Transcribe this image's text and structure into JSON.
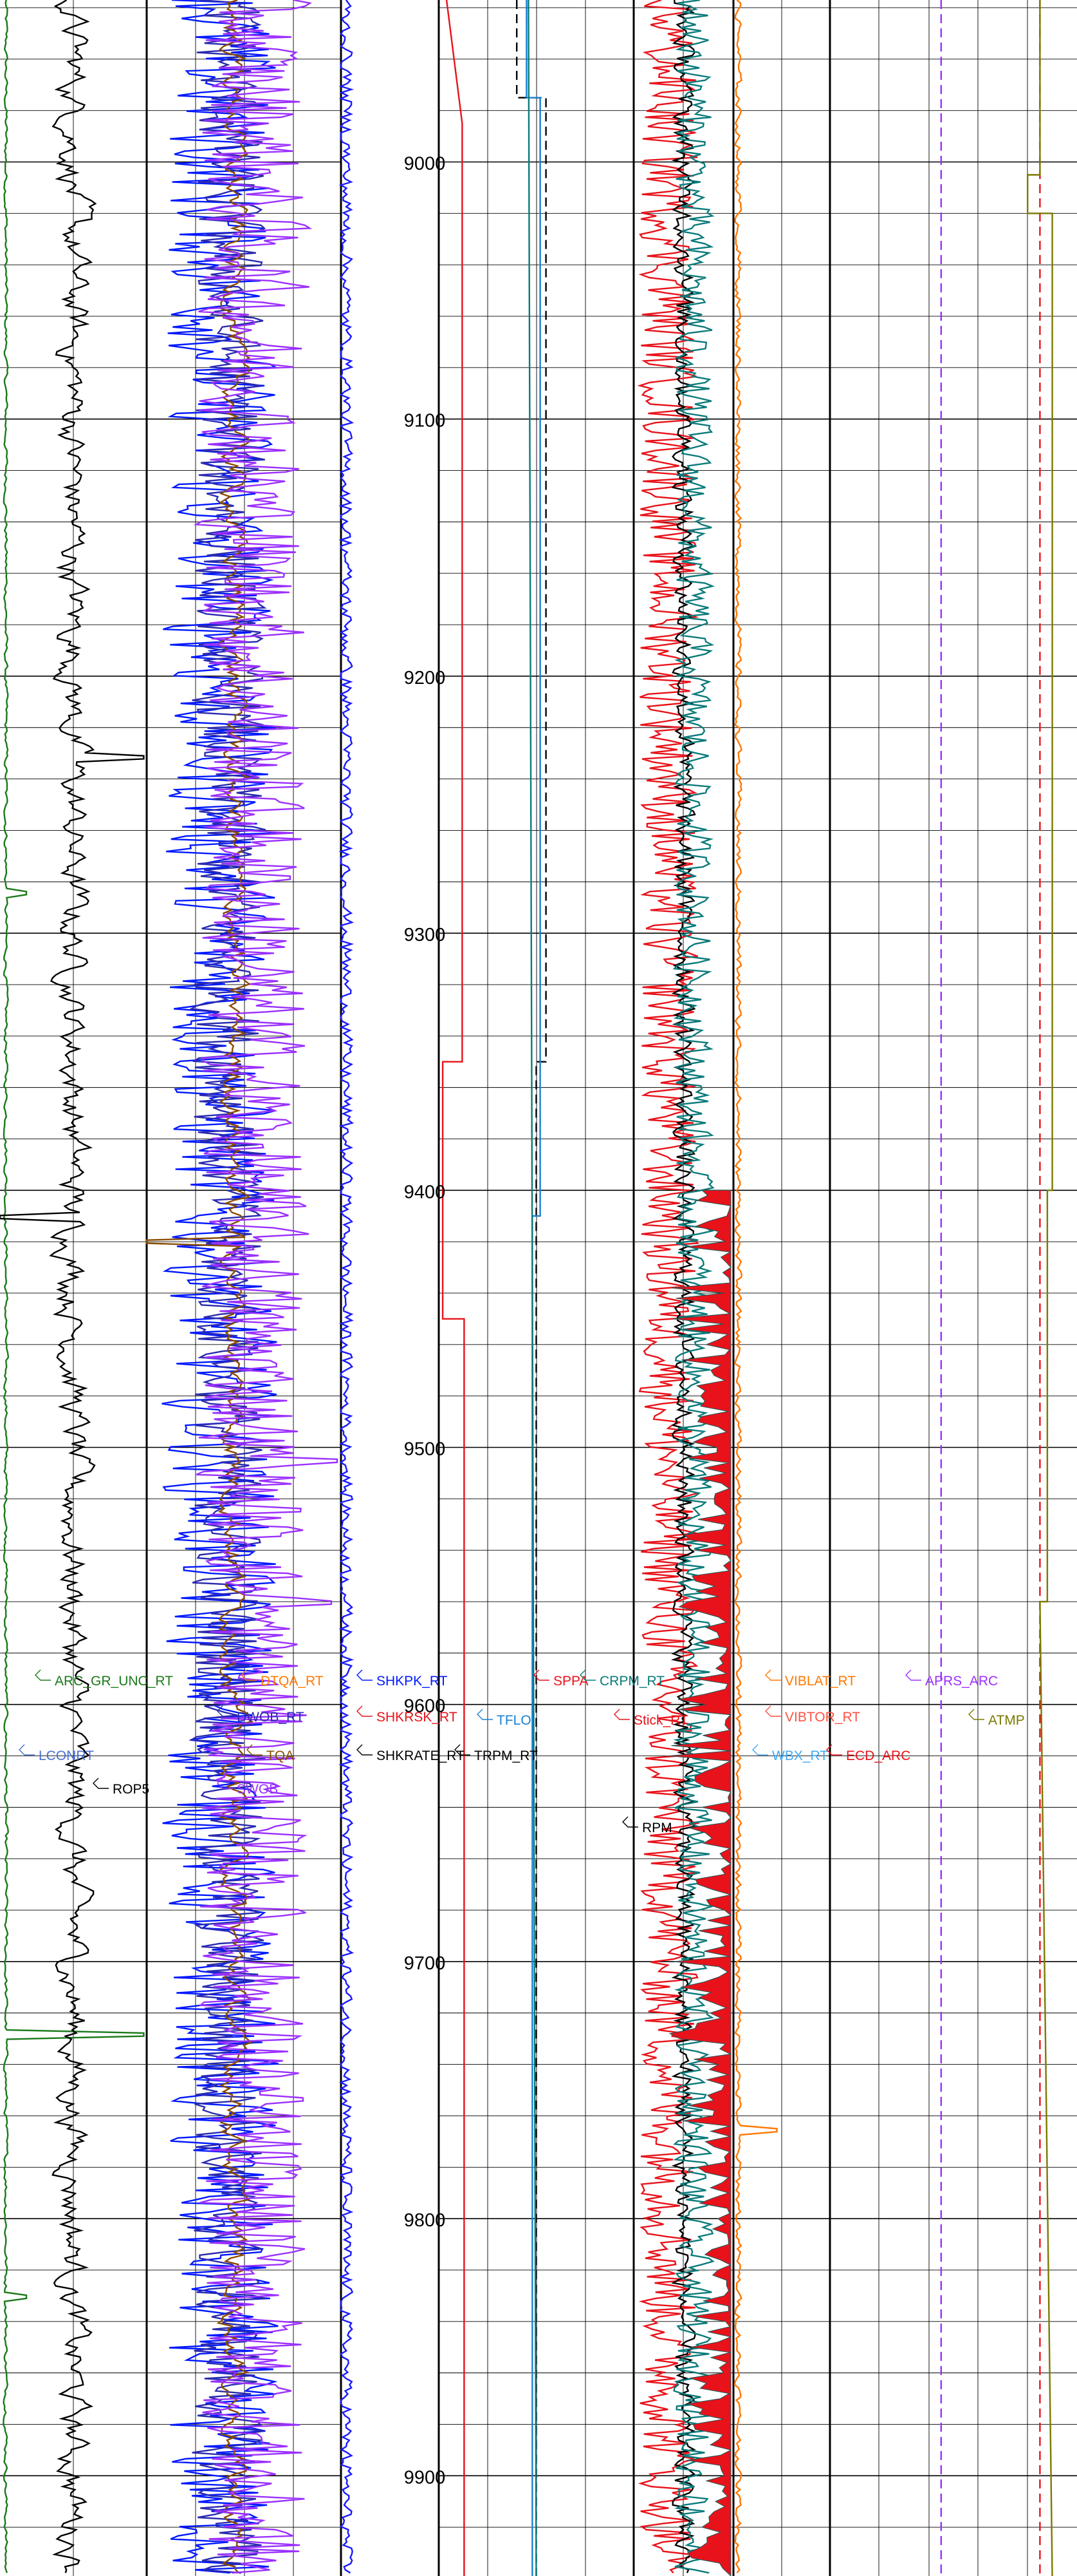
{
  "chart_data": {
    "type": "line",
    "title": "",
    "depth_axis": {
      "range": [
        8937,
        9939
      ],
      "labeled_ticks": [
        9000,
        9100,
        9200,
        9300,
        9400,
        9500,
        9600,
        9700,
        9800,
        9900
      ],
      "minor_step": 20,
      "grid": true
    },
    "tracks": [
      {
        "id": "track1",
        "curves": [
          {
            "name": "ARC_GR_UNC_RT",
            "color": "#1a7a1a",
            "base": 0.04,
            "amp": 0.02,
            "rough": 0.5,
            "spikes": [
              {
                "depth": 9285,
                "to": 0.18
              },
              {
                "depth": 9728,
                "to": 0.98
              },
              {
                "depth": 9831,
                "to": 0.18
              }
            ]
          },
          {
            "name": "LCONRT",
            "color": "#4a6fd4",
            "base": 0.0,
            "amp": 0.0,
            "rough": 0.0,
            "spikes": []
          },
          {
            "name": "ROP5",
            "color": "#000000",
            "base": 0.5,
            "amp": 0.22,
            "rough": 0.35,
            "spikes": [
              {
                "depth": 9232,
                "to": 0.98
              },
              {
                "depth": 9410,
                "to": 0.0
              }
            ]
          }
        ]
      },
      {
        "id": "track2",
        "curves": [
          {
            "name": "SHKPK_RT",
            "color": "#0018ff",
            "base": 0.38,
            "amp": 0.32,
            "rough": 0.85,
            "spikes": []
          },
          {
            "name": "DWOB_RT",
            "color": "#2a2ab0",
            "base": 0.42,
            "amp": 0.2,
            "rough": 0.9,
            "spikes": []
          },
          {
            "name": "TQA",
            "color": "#8b4a00",
            "base": 0.45,
            "amp": 0.12,
            "rough": 0.4,
            "spikes": [
              {
                "depth": 9420,
                "to": 0.0
              }
            ]
          },
          {
            "name": "SWOB",
            "color": "#9b30ff",
            "base": 0.55,
            "amp": 0.3,
            "rough": 0.9,
            "spikes": [
              {
                "depth": 9505,
                "to": 0.98
              },
              {
                "depth": 9560,
                "to": 0.95
              }
            ]
          }
        ]
      },
      {
        "id": "track3",
        "curves": [
          {
            "name": "SHKRSK_RT",
            "color": "#e8121a",
            "base": 0.02,
            "amp": 0.0,
            "rough": 0.0,
            "spikes": []
          },
          {
            "name": "SHKRATE_RT",
            "color": "#1a1aff",
            "base": 0.05,
            "amp": 0.07,
            "rough": 0.9,
            "spikes": []
          }
        ]
      },
      {
        "id": "track5",
        "curves": [
          {
            "name": "SPPA",
            "color": "#e8121a",
            "steps": [
              [
                8937,
                0.04
              ],
              [
                8985,
                0.12
              ],
              [
                9350,
                0.12
              ],
              [
                9350,
                0.02
              ],
              [
                9450,
                0.02
              ],
              [
                9450,
                0.13
              ],
              [
                9940,
                0.13
              ]
            ]
          },
          {
            "name": "TRPM_RT",
            "color": "#000000",
            "dashed": true,
            "steps": [
              [
                8937,
                0.4
              ],
              [
                8975,
                0.4
              ],
              [
                8975,
                0.55
              ],
              [
                9350,
                0.55
              ],
              [
                9350,
                0.5
              ],
              [
                9940,
                0.5
              ]
            ]
          },
          {
            "name": "TFLO",
            "color": "#1780d0",
            "steps": [
              [
                8937,
                0.45
              ],
              [
                8975,
                0.45
              ],
              [
                8975,
                0.52
              ],
              [
                9410,
                0.52
              ],
              [
                9410,
                0.48
              ],
              [
                9940,
                0.48
              ]
            ]
          },
          {
            "name": "CRPM_RT",
            "color": "#0a7a7a",
            "steps": [
              [
                8937,
                0.46
              ],
              [
                9940,
                0.5
              ]
            ]
          }
        ]
      },
      {
        "id": "track6",
        "curves": [
          {
            "name": "Stick_RT",
            "color": "#e8121a",
            "base": 0.35,
            "amp": 0.3,
            "rough": 0.95,
            "spikes": []
          },
          {
            "name": "RPM",
            "color": "#000000",
            "base": 0.5,
            "amp": 0.12,
            "rough": 0.8,
            "spikes": []
          },
          {
            "name": "CRPM_RT",
            "color": "#0a7a7a",
            "base": 0.6,
            "amp": 0.2,
            "rough": 0.9,
            "spikes": []
          }
        ]
      },
      {
        "id": "track7",
        "curves": [
          {
            "name": "VIBLAT_RT",
            "color": "#ff7800",
            "base": 0.05,
            "amp": 0.04,
            "rough": 0.7,
            "spikes": [
              {
                "depth": 9766,
                "to": 0.45
              }
            ]
          },
          {
            "name": "VIBTOR_RT",
            "color": "#ff5040",
            "base": 0.0,
            "amp": 0.0,
            "rough": 0.0,
            "spikes": []
          },
          {
            "name": "WBX_RT",
            "color": "#3fa9f5",
            "base": 0.0,
            "amp": 0.0,
            "rough": 0.0,
            "spikes": []
          }
        ]
      },
      {
        "id": "track8",
        "curves": [
          {
            "name": "APRS_ARC",
            "color": "#9b30ff",
            "dashed": true,
            "steps": [
              [
                8937,
                0.45
              ],
              [
                9940,
                0.45
              ]
            ]
          },
          {
            "name": "ECD_ARC",
            "color": "#e8121a",
            "dashed": true,
            "steps": [
              [
                8937,
                0.85
              ],
              [
                9940,
                0.85
              ]
            ]
          },
          {
            "name": "ATMP",
            "color": "#7a7a00",
            "steps": [
              [
                8937,
                0.85
              ],
              [
                9005,
                0.85
              ],
              [
                9005,
                0.8
              ],
              [
                9020,
                0.8
              ],
              [
                9020,
                0.9
              ],
              [
                9400,
                0.9
              ],
              [
                9400,
                0.88
              ],
              [
                9560,
                0.88
              ],
              [
                9560,
                0.85
              ],
              [
                9940,
                0.9
              ]
            ]
          }
        ]
      }
    ],
    "legend_labels": [
      {
        "id": "arc-gr-unc-rt",
        "text": "ARC_GR_UNC_RT",
        "color": "#1a7a1a"
      },
      {
        "id": "lconrt",
        "text": "LCONRT",
        "color": "#4a6fd4"
      },
      {
        "id": "rop5",
        "text": "ROP5",
        "color": "#000000"
      },
      {
        "id": "dtq-rt",
        "text": "DTQA_RT",
        "color": "#ff7800"
      },
      {
        "id": "dwob-rt",
        "text": "DWOB_RT",
        "color": "#2a2ab0"
      },
      {
        "id": "tqa",
        "text": "TQA",
        "color": "#8b4a00"
      },
      {
        "id": "swob",
        "text": "SWOB",
        "color": "#9b30ff"
      },
      {
        "id": "shkpk-rt",
        "text": "SHKPK_RT",
        "color": "#0018ff"
      },
      {
        "id": "shkrsk-rt",
        "text": "SHKRSK_RT",
        "color": "#e8121a"
      },
      {
        "id": "shkrate-rt",
        "text": "SHKRATE_RT",
        "color": "#000000"
      },
      {
        "id": "trpm-rt",
        "text": "TRPM_RT",
        "color": "#000000"
      },
      {
        "id": "sppa",
        "text": "SPPA",
        "color": "#e8121a"
      },
      {
        "id": "tflo",
        "text": "TFLO",
        "color": "#1780d0"
      },
      {
        "id": "crpm-rt",
        "text": "CRPM_RT",
        "color": "#0a7a7a"
      },
      {
        "id": "stick-rt",
        "text": "Stick_RT",
        "color": "#e8121a"
      },
      {
        "id": "rpm",
        "text": "RPM",
        "color": "#000000"
      },
      {
        "id": "viblat-rt",
        "text": "VIBLAT_RT",
        "color": "#ff7800"
      },
      {
        "id": "vibtor-rt",
        "text": "VIBTOR_RT",
        "color": "#ff5040"
      },
      {
        "id": "wbx-rt",
        "text": "WBX_RT",
        "color": "#3fa9f5"
      },
      {
        "id": "ecd-arc",
        "text": "ECD_ARC",
        "color": "#e8121a"
      },
      {
        "id": "aprs-arc",
        "text": "APRS_ARC",
        "color": "#9b30ff"
      },
      {
        "id": "atmp",
        "text": "ATMP",
        "color": "#7a7a00"
      }
    ]
  }
}
